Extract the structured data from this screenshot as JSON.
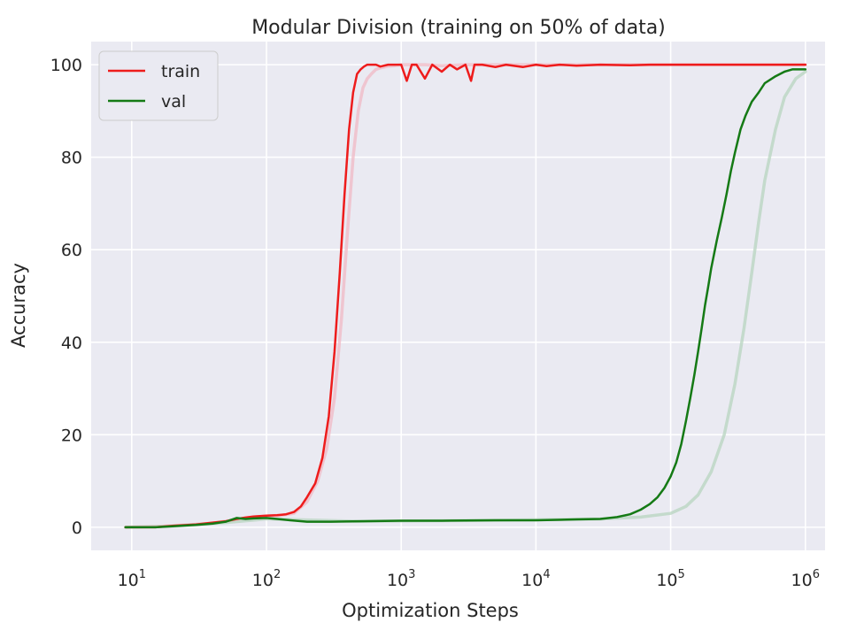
{
  "chart_data": {
    "type": "line",
    "title": "Modular Division (training on 50% of data)",
    "xlabel": "Optimization Steps",
    "ylabel": "Accuracy",
    "xscale": "log",
    "xlim": [
      5,
      1400000
    ],
    "ylim": [
      -5,
      105
    ],
    "xticks": [
      {
        "value": 10,
        "base": "10",
        "exp": "1"
      },
      {
        "value": 100,
        "base": "10",
        "exp": "2"
      },
      {
        "value": 1000,
        "base": "10",
        "exp": "3"
      },
      {
        "value": 10000,
        "base": "10",
        "exp": "4"
      },
      {
        "value": 100000,
        "base": "10",
        "exp": "5"
      },
      {
        "value": 1000000,
        "base": "10",
        "exp": "6"
      }
    ],
    "yticks": [
      0,
      20,
      40,
      60,
      80,
      100
    ],
    "grid": true,
    "legend": {
      "position": "top-left",
      "entries": [
        {
          "label": "train",
          "color": "#ee1c1c"
        },
        {
          "label": "val",
          "color": "#157a15"
        }
      ]
    },
    "colors": {
      "background": "#eaeaf2",
      "grid": "#ffffff",
      "train": "#ee1c1c",
      "train_shadow": "#f0b8c4",
      "val": "#157a15",
      "val_shadow": "#b7d4bf"
    },
    "series": [
      {
        "name": "train",
        "x": [
          9,
          15,
          20,
          30,
          40,
          50,
          60,
          70,
          80,
          100,
          120,
          140,
          160,
          180,
          200,
          230,
          260,
          290,
          320,
          350,
          380,
          410,
          440,
          470,
          500,
          530,
          560,
          600,
          650,
          700,
          800,
          900,
          1000,
          1100,
          1200,
          1300,
          1500,
          1700,
          2000,
          2300,
          2600,
          3000,
          3300,
          3500,
          4000,
          5000,
          6000,
          8000,
          10000,
          12000,
          15000,
          20000,
          30000,
          50000,
          70000,
          100000,
          150000,
          200000,
          300000,
          500000,
          1000000
        ],
        "values": [
          0,
          0,
          0.3,
          0.6,
          1.0,
          1.3,
          1.8,
          2.1,
          2.3,
          2.5,
          2.6,
          2.8,
          3.3,
          4.5,
          6.5,
          9.5,
          15,
          24,
          38,
          55,
          72,
          86,
          94,
          98,
          99,
          99.6,
          100,
          100,
          100,
          99.6,
          100,
          100,
          100,
          96.5,
          100,
          100,
          97,
          100,
          98.5,
          100,
          99,
          100,
          96.5,
          100,
          100,
          99.5,
          100,
          99.5,
          100,
          99.7,
          100,
          99.8,
          100,
          99.9,
          100,
          100,
          100,
          100,
          100,
          100,
          100
        ]
      },
      {
        "name": "val",
        "x": [
          9,
          15,
          20,
          30,
          40,
          50,
          60,
          70,
          80,
          100,
          120,
          150,
          200,
          300,
          500,
          1000,
          2000,
          5000,
          10000,
          20000,
          30000,
          40000,
          50000,
          60000,
          70000,
          80000,
          90000,
          100000,
          110000,
          120000,
          130000,
          140000,
          150000,
          160000,
          170000,
          180000,
          190000,
          200000,
          220000,
          240000,
          260000,
          280000,
          300000,
          330000,
          360000,
          400000,
          450000,
          500000,
          600000,
          700000,
          800000,
          1000000
        ],
        "values": [
          0,
          0,
          0.2,
          0.5,
          0.8,
          1.2,
          2.0,
          1.8,
          1.9,
          2.0,
          1.8,
          1.5,
          1.2,
          1.2,
          1.3,
          1.4,
          1.4,
          1.5,
          1.5,
          1.7,
          1.8,
          2.2,
          2.8,
          3.8,
          5.0,
          6.5,
          8.5,
          11,
          14,
          18,
          23,
          28,
          33,
          38,
          43,
          48,
          52,
          56,
          62,
          67,
          72,
          77,
          81,
          86,
          89,
          92,
          94,
          96,
          97.5,
          98.5,
          99,
          99
        ]
      },
      {
        "name": "train-shadow",
        "x": [
          9,
          20,
          40,
          60,
          80,
          100,
          130,
          160,
          200,
          240,
          280,
          320,
          360,
          400,
          440,
          480,
          520,
          560,
          600,
          650,
          700,
          750,
          800,
          900,
          1000,
          1500,
          2000,
          3000,
          5000,
          10000,
          100000,
          1000000
        ],
        "values": [
          0,
          0.3,
          0.9,
          1.7,
          2.2,
          2.4,
          2.6,
          3.0,
          5.5,
          10,
          17,
          28,
          45,
          64,
          80,
          90,
          95,
          97,
          98,
          99,
          99.3,
          99.5,
          99.7,
          99.8,
          100,
          100,
          99.8,
          100,
          100,
          100,
          100,
          100
        ]
      },
      {
        "name": "val-shadow",
        "x": [
          9,
          20,
          50,
          100,
          500,
          5000,
          30000,
          60000,
          100000,
          130000,
          160000,
          200000,
          250000,
          300000,
          350000,
          400000,
          450000,
          500000,
          600000,
          700000,
          850000,
          1000000
        ],
        "values": [
          0,
          0.2,
          1.0,
          1.8,
          1.3,
          1.5,
          1.8,
          2.2,
          3.0,
          4.5,
          7.0,
          12,
          20,
          31,
          43,
          55,
          66,
          75,
          86,
          93,
          97,
          98.5
        ]
      }
    ]
  }
}
